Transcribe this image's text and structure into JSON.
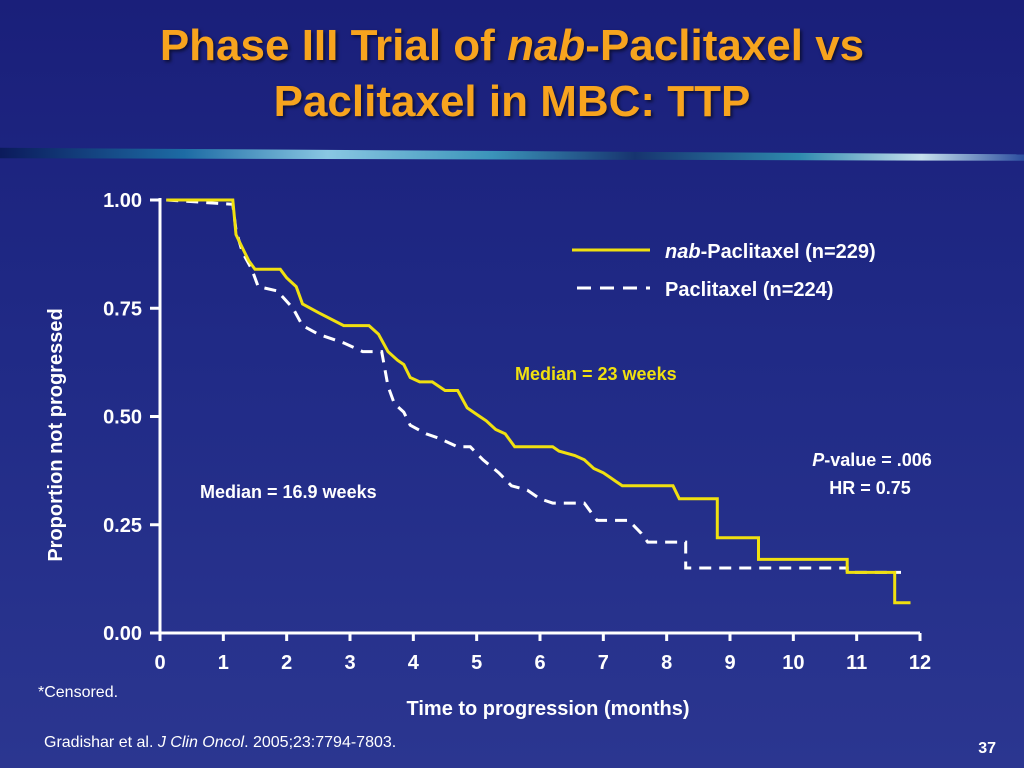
{
  "slide": {
    "title_line1_a": "Phase III Trial of ",
    "title_line1_b": "nab",
    "title_line1_c": "-Paclitaxel vs",
    "title_line2": "Paclitaxel in MBC: TTP",
    "footnote": "*Censored.",
    "citation_a": "Gradishar et al. ",
    "citation_b": "J Clin Oncol",
    "citation_c": ". 2005;23:7794-7803.",
    "page_number": "37"
  },
  "chart_data": {
    "type": "line",
    "xlabel": "Time to progression (months)",
    "ylabel": "Proportion not progressed",
    "xlim": [
      0,
      12
    ],
    "ylim": [
      0,
      1
    ],
    "x_ticks": [
      "0",
      "1",
      "2",
      "3",
      "4",
      "5",
      "6",
      "7",
      "8",
      "9",
      "10",
      "11",
      "12"
    ],
    "y_ticks": [
      "0.00",
      "0.25",
      "0.50",
      "0.75",
      "1.00"
    ],
    "legend": "top-right",
    "series": [
      {
        "name_a": "nab",
        "name_b": "-Paclitaxel (n=229)",
        "color": "#f0e010",
        "style": "solid",
        "points": [
          [
            0.1,
            1.0
          ],
          [
            1.15,
            1.0
          ],
          [
            1.2,
            0.92
          ],
          [
            1.3,
            0.89
          ],
          [
            1.4,
            0.86
          ],
          [
            1.5,
            0.84
          ],
          [
            1.9,
            0.84
          ],
          [
            2.0,
            0.82
          ],
          [
            2.15,
            0.8
          ],
          [
            2.25,
            0.76
          ],
          [
            2.5,
            0.74
          ],
          [
            2.9,
            0.71
          ],
          [
            3.3,
            0.71
          ],
          [
            3.45,
            0.69
          ],
          [
            3.6,
            0.65
          ],
          [
            3.75,
            0.63
          ],
          [
            3.85,
            0.62
          ],
          [
            3.95,
            0.59
          ],
          [
            4.1,
            0.58
          ],
          [
            4.3,
            0.58
          ],
          [
            4.5,
            0.56
          ],
          [
            4.7,
            0.56
          ],
          [
            4.85,
            0.52
          ],
          [
            5.05,
            0.5
          ],
          [
            5.15,
            0.49
          ],
          [
            5.3,
            0.47
          ],
          [
            5.45,
            0.46
          ],
          [
            5.6,
            0.43
          ],
          [
            6.2,
            0.43
          ],
          [
            6.3,
            0.42
          ],
          [
            6.55,
            0.41
          ],
          [
            6.7,
            0.4
          ],
          [
            6.85,
            0.38
          ],
          [
            7.0,
            0.37
          ],
          [
            7.1,
            0.36
          ],
          [
            7.2,
            0.35
          ],
          [
            7.3,
            0.34
          ],
          [
            8.1,
            0.34
          ],
          [
            8.2,
            0.31
          ],
          [
            8.8,
            0.31
          ],
          [
            8.8,
            0.22
          ],
          [
            9.45,
            0.22
          ],
          [
            9.45,
            0.17
          ],
          [
            10.85,
            0.17
          ],
          [
            10.85,
            0.14
          ],
          [
            11.6,
            0.14
          ],
          [
            11.6,
            0.07
          ],
          [
            11.85,
            0.07
          ]
        ]
      },
      {
        "name": "Paclitaxel (n=224)",
        "color": "#ffffff",
        "style": "dashed",
        "points": [
          [
            0.1,
            1.0
          ],
          [
            1.15,
            0.99
          ],
          [
            1.2,
            0.93
          ],
          [
            1.3,
            0.88
          ],
          [
            1.45,
            0.84
          ],
          [
            1.55,
            0.8
          ],
          [
            1.85,
            0.79
          ],
          [
            2.1,
            0.75
          ],
          [
            2.25,
            0.71
          ],
          [
            2.5,
            0.69
          ],
          [
            2.9,
            0.67
          ],
          [
            3.2,
            0.65
          ],
          [
            3.5,
            0.65
          ],
          [
            3.6,
            0.57
          ],
          [
            3.7,
            0.53
          ],
          [
            3.85,
            0.51
          ],
          [
            3.95,
            0.48
          ],
          [
            4.2,
            0.46
          ],
          [
            4.4,
            0.45
          ],
          [
            4.7,
            0.43
          ],
          [
            4.9,
            0.43
          ],
          [
            5.1,
            0.4
          ],
          [
            5.35,
            0.37
          ],
          [
            5.55,
            0.34
          ],
          [
            5.8,
            0.33
          ],
          [
            6.0,
            0.31
          ],
          [
            6.2,
            0.3
          ],
          [
            6.7,
            0.3
          ],
          [
            6.9,
            0.26
          ],
          [
            7.4,
            0.26
          ],
          [
            7.6,
            0.23
          ],
          [
            7.7,
            0.21
          ],
          [
            8.3,
            0.21
          ],
          [
            8.3,
            0.15
          ],
          [
            10.85,
            0.15
          ],
          [
            10.85,
            0.14
          ],
          [
            11.7,
            0.14
          ]
        ]
      }
    ],
    "annotations": {
      "nab_median": "Median = 23 weeks",
      "pac_median": "Median = 16.9 weeks",
      "pvalue_a": "P",
      "pvalue_b": "-value = .006",
      "hr": "HR = 0.75"
    }
  }
}
